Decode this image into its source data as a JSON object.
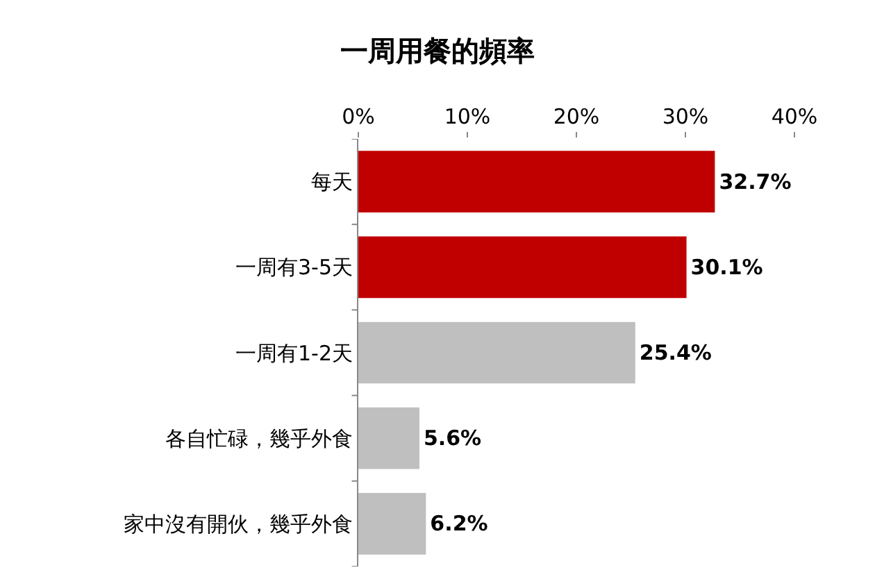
{
  "chart_data": {
    "type": "bar",
    "orientation": "horizontal",
    "title": "一周用餐的頻率",
    "categories": [
      "每天",
      "一周有3-5天",
      "一周有1-2天",
      "各自忙碌，幾乎外食",
      "家中沒有開伙，幾乎外食"
    ],
    "values": [
      32.7,
      30.1,
      25.4,
      5.6,
      6.2
    ],
    "colors": [
      "#c00000",
      "#c00000",
      "#bfbfbf",
      "#bfbfbf",
      "#bfbfbf"
    ],
    "value_labels": [
      "32.7%",
      "30.1%",
      "25.4%",
      "5.6%",
      "6.2%"
    ],
    "xlim": [
      0,
      40
    ],
    "xticks": [
      {
        "value": 0,
        "label": "0%"
      },
      {
        "value": 10,
        "label": "10%"
      },
      {
        "value": 20,
        "label": "20%"
      },
      {
        "value": 30,
        "label": "30%"
      },
      {
        "value": 40,
        "label": "40%"
      }
    ],
    "legend": false
  }
}
